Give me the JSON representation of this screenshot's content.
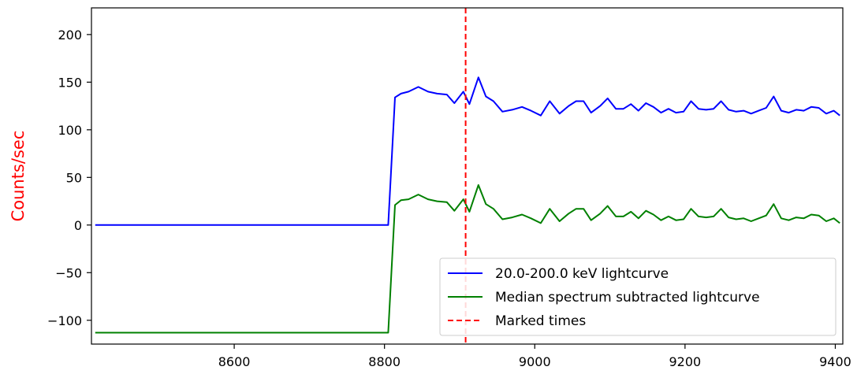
{
  "chart_data": {
    "type": "line",
    "title": "",
    "xlabel": "",
    "ylabel": "Counts/sec",
    "ylabel_color": "#ff0000",
    "xlim": [
      8410,
      9410
    ],
    "ylim": [
      -125,
      228
    ],
    "xticks": [
      8600,
      8800,
      9000,
      9200,
      9400
    ],
    "yticks": [
      200,
      150,
      100,
      50,
      0,
      -50,
      -100
    ],
    "ytick_labels": [
      "200",
      "150",
      "100",
      "50",
      "0",
      "−50",
      "−100"
    ],
    "grid": false,
    "legend_position": "lower-right",
    "series": [
      {
        "name": "20.0-200.0 keV lightcurve",
        "color": "#0000ff",
        "style": "solid",
        "x": [
          8415,
          8805,
          8814,
          8822,
          8832,
          8845,
          8858,
          8870,
          8883,
          8893,
          8905,
          8913,
          8925,
          8935,
          8945,
          8957,
          8970,
          8983,
          8995,
          9008,
          9020,
          9033,
          9045,
          9055,
          9065,
          9075,
          9087,
          9097,
          9108,
          9118,
          9128,
          9138,
          9148,
          9158,
          9168,
          9178,
          9188,
          9198,
          9208,
          9218,
          9228,
          9238,
          9248,
          9258,
          9268,
          9278,
          9288,
          9298,
          9308,
          9318,
          9328,
          9338,
          9348,
          9358,
          9368,
          9378,
          9388,
          9398,
          9406
        ],
        "y": [
          0,
          0,
          134,
          138,
          140,
          145,
          140,
          138,
          137,
          128,
          140,
          127,
          155,
          135,
          130,
          119,
          121,
          124,
          120,
          115,
          130,
          117,
          125,
          130,
          130,
          118,
          125,
          133,
          122,
          122,
          127,
          120,
          128,
          124,
          118,
          122,
          118,
          119,
          130,
          122,
          121,
          122,
          130,
          121,
          119,
          120,
          117,
          120,
          123,
          135,
          120,
          118,
          121,
          120,
          124,
          123,
          117,
          120,
          115
        ]
      },
      {
        "name": "Median spectrum subtracted lightcurve",
        "color": "#008000",
        "style": "solid",
        "x": [
          8415,
          8805,
          8814,
          8822,
          8832,
          8845,
          8858,
          8870,
          8883,
          8893,
          8905,
          8913,
          8925,
          8935,
          8945,
          8957,
          8970,
          8983,
          8995,
          9008,
          9020,
          9033,
          9045,
          9055,
          9065,
          9075,
          9087,
          9097,
          9108,
          9118,
          9128,
          9138,
          9148,
          9158,
          9168,
          9178,
          9188,
          9198,
          9208,
          9218,
          9228,
          9238,
          9248,
          9258,
          9268,
          9278,
          9288,
          9298,
          9308,
          9318,
          9328,
          9338,
          9348,
          9358,
          9368,
          9378,
          9388,
          9398,
          9406
        ],
        "y": [
          -113,
          -113,
          21,
          26,
          27,
          32,
          27,
          25,
          24,
          15,
          27,
          14,
          42,
          22,
          17,
          6,
          8,
          11,
          7,
          2,
          17,
          4,
          12,
          17,
          17,
          5,
          12,
          20,
          9,
          9,
          14,
          7,
          15,
          11,
          5,
          9,
          5,
          6,
          17,
          9,
          8,
          9,
          17,
          8,
          6,
          7,
          4,
          7,
          10,
          22,
          7,
          5,
          8,
          7,
          11,
          10,
          4,
          7,
          2
        ]
      }
    ],
    "vlines": [
      {
        "name": "Marked times",
        "x": 8908,
        "color": "#ff0000",
        "style": "dashed"
      }
    ]
  }
}
